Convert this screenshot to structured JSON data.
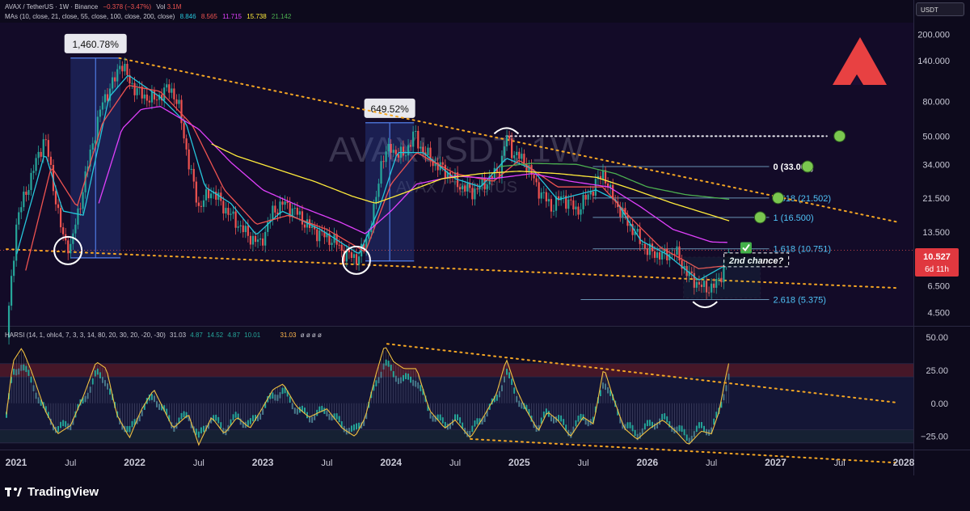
{
  "header": {
    "symbol_line": "AVAX / TetherUS · 1W · Binance",
    "change": "−0.378 (−3.47%)",
    "vol_label": "Vol",
    "vol_value": "3.1M",
    "ma_label": "MAs (10, close, 21, close, 55, close, 100, close, 200, close)",
    "ma_values": [
      "8.846",
      "8.565",
      "11.715",
      "15.738",
      "21.142"
    ],
    "ma_colors": [
      "#26c6da",
      "#ef5350",
      "#e040fb",
      "#ffeb3b",
      "#4caf50"
    ]
  },
  "harsi_header": {
    "label": "HARSI (14, 1, ohlc4, 7, 3, 3, 14, 80, 20, 30, 20, -20, -30)",
    "v1": "31.03",
    "v2": "4.87",
    "v3": "14.52",
    "v4": "4.87",
    "v5": "10.01",
    "v6": "31.03",
    "tail": "ø ø ø ø"
  },
  "currency_button": "USDT",
  "watermark": {
    "main": "AVAXUSDT, 1W",
    "sub": "AVAX / TetherUS"
  },
  "brand": "TradingView",
  "price_tag": {
    "value": "10.527",
    "countdown": "6d 11h"
  },
  "chart_data": [
    {
      "type": "candlestick",
      "title": "",
      "yscale": "log",
      "ylim": [
        3.8,
        230
      ],
      "y_ticks": [
        4.5,
        6.5,
        9.5,
        13.5,
        21.5,
        34,
        50,
        80,
        140,
        200
      ],
      "y_tick_labels": [
        "4.500",
        "6.500",
        "9.500",
        "13.500",
        "21.500",
        "34.000",
        "50.000",
        "80.000",
        "140.000",
        "200.000"
      ],
      "x_labels": [
        "2021",
        "Jul",
        "2022",
        "Jul",
        "2023",
        "Jul",
        "2024",
        "Jul",
        "2025",
        "Jul",
        "2026",
        "Jul",
        "2027",
        "Jul",
        "2028"
      ],
      "price_path": [
        [
          2021.0,
          3.2
        ],
        [
          2021.08,
          16
        ],
        [
          2021.2,
          30
        ],
        [
          2021.3,
          50
        ],
        [
          2021.38,
          22
        ],
        [
          2021.44,
          12.5
        ],
        [
          2021.5,
          11
        ],
        [
          2021.58,
          21
        ],
        [
          2021.66,
          42
        ],
        [
          2021.75,
          80
        ],
        [
          2021.85,
          110
        ],
        [
          2021.89,
          140
        ],
        [
          2021.96,
          105
        ],
        [
          2022.05,
          88
        ],
        [
          2022.15,
          82
        ],
        [
          2022.28,
          98
        ],
        [
          2022.35,
          72
        ],
        [
          2022.42,
          35
        ],
        [
          2022.5,
          19
        ],
        [
          2022.6,
          24
        ],
        [
          2022.72,
          18
        ],
        [
          2022.88,
          13
        ],
        [
          2022.98,
          11.5
        ],
        [
          2023.08,
          18
        ],
        [
          2023.16,
          20
        ],
        [
          2023.25,
          18
        ],
        [
          2023.36,
          14.5
        ],
        [
          2023.46,
          13
        ],
        [
          2023.56,
          12
        ],
        [
          2023.64,
          10
        ],
        [
          2023.74,
          9.5
        ],
        [
          2023.8,
          11.5
        ],
        [
          2023.88,
          20
        ],
        [
          2023.93,
          38
        ],
        [
          2024.0,
          42
        ],
        [
          2024.1,
          38
        ],
        [
          2024.18,
          52
        ],
        [
          2024.22,
          44
        ],
        [
          2024.33,
          35
        ],
        [
          2024.45,
          30
        ],
        [
          2024.55,
          25
        ],
        [
          2024.64,
          23.5
        ],
        [
          2024.75,
          27
        ],
        [
          2024.85,
          32
        ],
        [
          2024.9,
          50
        ],
        [
          2024.95,
          40
        ],
        [
          2025.05,
          35
        ],
        [
          2025.14,
          25
        ],
        [
          2025.25,
          19
        ],
        [
          2025.34,
          22
        ],
        [
          2025.45,
          18
        ],
        [
          2025.55,
          23
        ],
        [
          2025.66,
          31
        ],
        [
          2025.7,
          24
        ],
        [
          2025.8,
          17.5
        ],
        [
          2025.9,
          13.5
        ],
        [
          2026.0,
          10.5
        ],
        [
          2026.12,
          9.8
        ],
        [
          2026.22,
          10.3
        ],
        [
          2026.32,
          7.5
        ],
        [
          2026.45,
          6.2
        ],
        [
          2026.55,
          6.7
        ],
        [
          2026.6,
          8.6
        ],
        [
          2026.64,
          10.53
        ]
      ],
      "moving_averages": [
        {
          "period": 10,
          "color": "#26c6da",
          "points": [
            [
              2021.08,
              10
            ],
            [
              2021.3,
              40
            ],
            [
              2021.44,
              18
            ],
            [
              2021.6,
              17
            ],
            [
              2021.8,
              85
            ],
            [
              2021.95,
              115
            ],
            [
              2022.2,
              85
            ],
            [
              2022.4,
              60
            ],
            [
              2022.55,
              25
            ],
            [
              2022.75,
              20
            ],
            [
              2022.95,
              13
            ],
            [
              2023.15,
              18
            ],
            [
              2023.45,
              14
            ],
            [
              2023.75,
              10
            ],
            [
              2023.9,
              18
            ],
            [
              2024.05,
              40
            ],
            [
              2024.25,
              40
            ],
            [
              2024.5,
              28
            ],
            [
              2024.7,
              25
            ],
            [
              2024.9,
              37
            ],
            [
              2025.1,
              32
            ],
            [
              2025.3,
              21
            ],
            [
              2025.6,
              24
            ],
            [
              2025.75,
              21
            ],
            [
              2025.95,
              12
            ],
            [
              2026.15,
              10
            ],
            [
              2026.4,
              7
            ],
            [
              2026.64,
              8.85
            ]
          ]
        },
        {
          "period": 21,
          "color": "#ef5350",
          "points": [
            [
              2021.15,
              8
            ],
            [
              2021.35,
              33
            ],
            [
              2021.55,
              19
            ],
            [
              2021.75,
              60
            ],
            [
              2021.95,
              100
            ],
            [
              2022.2,
              92
            ],
            [
              2022.45,
              58
            ],
            [
              2022.7,
              24
            ],
            [
              2022.95,
              15
            ],
            [
              2023.2,
              17
            ],
            [
              2023.5,
              14
            ],
            [
              2023.8,
              10.3
            ],
            [
              2024.0,
              26
            ],
            [
              2024.2,
              40
            ],
            [
              2024.5,
              30
            ],
            [
              2024.8,
              27
            ],
            [
              2025.0,
              36
            ],
            [
              2025.3,
              25
            ],
            [
              2025.65,
              25
            ],
            [
              2025.85,
              17
            ],
            [
              2026.1,
              11
            ],
            [
              2026.4,
              8.2
            ],
            [
              2026.64,
              8.57
            ]
          ]
        },
        {
          "period": 55,
          "color": "#e040fb",
          "points": [
            [
              2021.72,
              20
            ],
            [
              2021.9,
              55
            ],
            [
              2022.05,
              72
            ],
            [
              2022.2,
              75
            ],
            [
              2022.5,
              55
            ],
            [
              2022.75,
              35
            ],
            [
              2023.0,
              24
            ],
            [
              2023.3,
              19
            ],
            [
              2023.6,
              15.5
            ],
            [
              2023.8,
              13.2
            ],
            [
              2024.0,
              18
            ],
            [
              2024.2,
              26
            ],
            [
              2024.5,
              29
            ],
            [
              2024.8,
              28
            ],
            [
              2025.1,
              30
            ],
            [
              2025.4,
              27
            ],
            [
              2025.7,
              25
            ],
            [
              2025.95,
              19
            ],
            [
              2026.2,
              14
            ],
            [
              2026.5,
              11.8
            ],
            [
              2026.64,
              11.72
            ]
          ]
        },
        {
          "period": 100,
          "color": "#ffeb3b",
          "points": [
            [
              2022.6,
              45
            ],
            [
              2022.8,
              38
            ],
            [
              2023.1,
              32
            ],
            [
              2023.4,
              27
            ],
            [
              2023.7,
              22
            ],
            [
              2023.88,
              20
            ],
            [
              2024.1,
              23
            ],
            [
              2024.4,
              28
            ],
            [
              2024.7,
              30
            ],
            [
              2025.0,
              31
            ],
            [
              2025.3,
              30
            ],
            [
              2025.6,
              28.5
            ],
            [
              2025.9,
              24
            ],
            [
              2026.2,
              20
            ],
            [
              2026.5,
              17
            ],
            [
              2026.64,
              15.74
            ]
          ]
        },
        {
          "period": 200,
          "color": "#4caf50",
          "points": [
            [
              2024.85,
              33
            ],
            [
              2025.1,
              34.5
            ],
            [
              2025.45,
              34
            ],
            [
              2025.75,
              30
            ],
            [
              2026.0,
              25
            ],
            [
              2026.3,
              22.5
            ],
            [
              2026.64,
              21.14
            ]
          ]
        }
      ],
      "fib_levels": [
        {
          "ratio": "0",
          "price": 33.0,
          "label": "0 (33.000)",
          "color": "#ffffff"
        },
        {
          "ratio": "0.618",
          "price": 21.502,
          "label": "0.618 (21.502)",
          "color": "#4fc3f7"
        },
        {
          "ratio": "1",
          "price": 16.5,
          "label": "1 (16.500)",
          "color": "#4fc3f7"
        },
        {
          "ratio": "1.618",
          "price": 10.751,
          "label": "1.618 (10.751)",
          "color": "#4fc3f7"
        },
        {
          "ratio": "2.618",
          "price": 5.375,
          "label": "2.618 (5.375)",
          "color": "#4fc3f7"
        }
      ],
      "annotations": [
        {
          "type": "gain-box",
          "label": "1,460.78%",
          "x_start": 2021.5,
          "x_end": 2021.89,
          "y_low": 9.5,
          "y_high": 145
        },
        {
          "type": "gain-box",
          "label": "649.52%",
          "x_start": 2023.8,
          "x_end": 2024.18,
          "y_low": 9.1,
          "y_high": 60
        },
        {
          "type": "dotted-line",
          "from": [
            2021.88,
            145
          ],
          "to": [
            2027.95,
            15.5
          ],
          "level": null
        },
        {
          "type": "dotted-line",
          "from": [
            2021.0,
            10.7
          ],
          "to": [
            2027.95,
            6.3
          ],
          "level": null
        },
        {
          "type": "dotted-line",
          "from": [
            2024.9,
            50
          ],
          "to": [
            2027.4,
            50
          ],
          "level": 50
        },
        {
          "type": "text-box",
          "label": "2nd chance?",
          "x": 2026.85,
          "y": 8.8
        },
        {
          "type": "circle",
          "x": 2021.48,
          "y": 10.5
        },
        {
          "type": "circle",
          "x": 2023.73,
          "y": 9.2
        },
        {
          "type": "arc-top",
          "x": 2024.9,
          "y": 54
        },
        {
          "type": "arc-bottom",
          "x": 2026.45,
          "y": 5.0
        },
        {
          "type": "checkmark",
          "x": 2026.77,
          "y": 10.9
        }
      ],
      "target_dots": [
        {
          "x": 2027.5,
          "y": 50
        },
        {
          "x": 2027.25,
          "y": 33.0
        },
        {
          "x": 2027.02,
          "y": 21.502
        },
        {
          "x": 2026.88,
          "y": 16.5
        }
      ]
    },
    {
      "type": "line",
      "title": "",
      "ylim": [
        -35,
        58
      ],
      "y_ticks": [
        50,
        25,
        0,
        -25
      ],
      "y_tick_labels": [
        "50.00",
        "25.00",
        "0.00",
        "−25.00"
      ],
      "zones": [
        {
          "from": 20,
          "to": 30,
          "color": "#6b1f2d"
        },
        {
          "from": -20,
          "to": 20,
          "color": "#151738"
        },
        {
          "from": -30,
          "to": -20,
          "color": "#1a3040"
        }
      ],
      "osc_points": [
        [
          2021.0,
          -8
        ],
        [
          2021.05,
          30
        ],
        [
          2021.12,
          40
        ],
        [
          2021.2,
          22
        ],
        [
          2021.3,
          -5
        ],
        [
          2021.4,
          -22
        ],
        [
          2021.5,
          -16
        ],
        [
          2021.6,
          5
        ],
        [
          2021.7,
          30
        ],
        [
          2021.78,
          25
        ],
        [
          2021.86,
          -8
        ],
        [
          2021.96,
          -25
        ],
        [
          2022.05,
          -5
        ],
        [
          2022.15,
          10
        ],
        [
          2022.3,
          -18
        ],
        [
          2022.42,
          -8
        ],
        [
          2022.5,
          -30
        ],
        [
          2022.6,
          -10
        ],
        [
          2022.7,
          -22
        ],
        [
          2022.8,
          -10
        ],
        [
          2022.9,
          -18
        ],
        [
          2022.98,
          -6
        ],
        [
          2023.08,
          10
        ],
        [
          2023.16,
          14
        ],
        [
          2023.26,
          -2
        ],
        [
          2023.36,
          -10
        ],
        [
          2023.5,
          -4
        ],
        [
          2023.62,
          -18
        ],
        [
          2023.72,
          -24
        ],
        [
          2023.8,
          -10
        ],
        [
          2023.88,
          20
        ],
        [
          2023.95,
          42
        ],
        [
          2024.02,
          30
        ],
        [
          2024.1,
          25
        ],
        [
          2024.2,
          25
        ],
        [
          2024.3,
          -5
        ],
        [
          2024.42,
          -18
        ],
        [
          2024.5,
          -12
        ],
        [
          2024.62,
          -25
        ],
        [
          2024.72,
          -10
        ],
        [
          2024.82,
          6
        ],
        [
          2024.9,
          32
        ],
        [
          2024.98,
          10
        ],
        [
          2025.05,
          -4
        ],
        [
          2025.15,
          -20
        ],
        [
          2025.22,
          -6
        ],
        [
          2025.3,
          -12
        ],
        [
          2025.4,
          -24
        ],
        [
          2025.5,
          -10
        ],
        [
          2025.58,
          -15
        ],
        [
          2025.66,
          26
        ],
        [
          2025.73,
          5
        ],
        [
          2025.82,
          -18
        ],
        [
          2025.92,
          -26
        ],
        [
          2026.02,
          -18
        ],
        [
          2026.12,
          -12
        ],
        [
          2026.22,
          -20
        ],
        [
          2026.32,
          -30
        ],
        [
          2026.42,
          -20
        ],
        [
          2026.5,
          -22
        ],
        [
          2026.56,
          -6
        ],
        [
          2026.6,
          14
        ],
        [
          2026.64,
          31
        ]
      ],
      "trendlines": [
        {
          "from": [
            2023.97,
            45
          ],
          "to": [
            2027.95,
            0.5
          ]
        },
        {
          "from": [
            2024.62,
            -27
          ],
          "to": [
            2027.95,
            -45
          ]
        }
      ]
    }
  ]
}
